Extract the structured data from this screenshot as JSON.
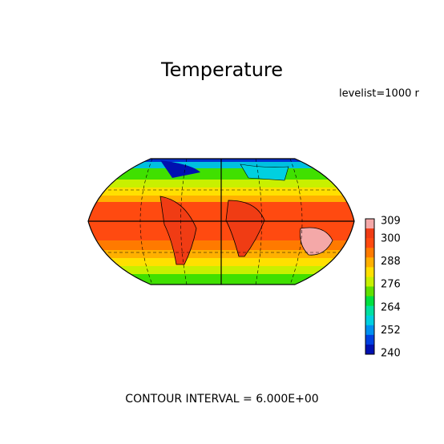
{
  "title": "Temperature",
  "subtitle": "levelist=1000 r",
  "colorbar": {
    "labels": [
      "309",
      "300",
      "288",
      "276",
      "264",
      "252",
      "240"
    ],
    "colors": [
      "#f4a8a8",
      "#f03c14",
      "#ff4a10",
      "#ff7a00",
      "#ffb000",
      "#ffe000",
      "#c8f000",
      "#60e000",
      "#00e040",
      "#00e0a0",
      "#00d0e0",
      "#0090f0",
      "#0040e0",
      "#0010b0"
    ]
  },
  "footer": "CONTOUR INTERVAL = 6.000E+00"
}
